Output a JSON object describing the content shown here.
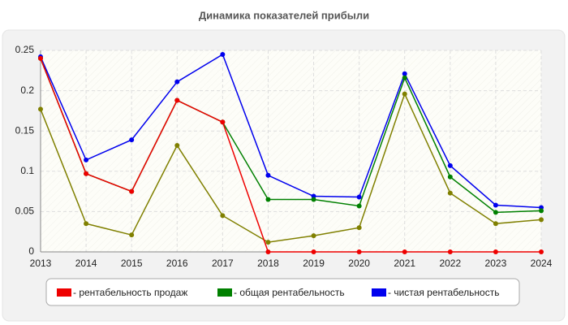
{
  "chart_data": {
    "type": "line",
    "title": "Динамика показателей прибыли",
    "x": [
      2013,
      2014,
      2015,
      2016,
      2017,
      2018,
      2019,
      2020,
      2021,
      2022,
      2023,
      2024
    ],
    "xlim": [
      2013,
      2024
    ],
    "xticks": [
      2013,
      2014,
      2015,
      2016,
      2017,
      2018,
      2019,
      2020,
      2021,
      2022,
      2023,
      2024
    ],
    "ylim": [
      0,
      0.25
    ],
    "yticks": [
      0,
      0.05,
      0.1,
      0.15,
      0.2,
      0.25
    ],
    "grid": true,
    "series": [
      {
        "name": "- рентабельность продаж",
        "color": "#ee0000",
        "values": [
          0.24,
          0.097,
          0.075,
          0.188,
          0.161,
          0,
          0,
          0,
          0,
          0,
          0,
          0
        ]
      },
      {
        "name": "- общая рентабельность",
        "color": "#008000",
        "values": [
          0.24,
          0.097,
          0.075,
          0.188,
          0.161,
          0.065,
          0.065,
          0.057,
          0.216,
          0.093,
          0.049,
          0.051
        ]
      },
      {
        "name": "- чистая рентабельность",
        "color": "#0000ee",
        "values": [
          0.242,
          0.114,
          0.139,
          0.211,
          0.245,
          0.095,
          0.069,
          0.068,
          0.221,
          0.107,
          0.058,
          0.055
        ]
      },
      {
        "color": "#808000",
        "values": [
          0.177,
          0.035,
          0.021,
          0.132,
          0.045,
          0.012,
          0.02,
          0.03,
          0.196,
          0.073,
          0.035,
          0.04
        ]
      }
    ]
  }
}
